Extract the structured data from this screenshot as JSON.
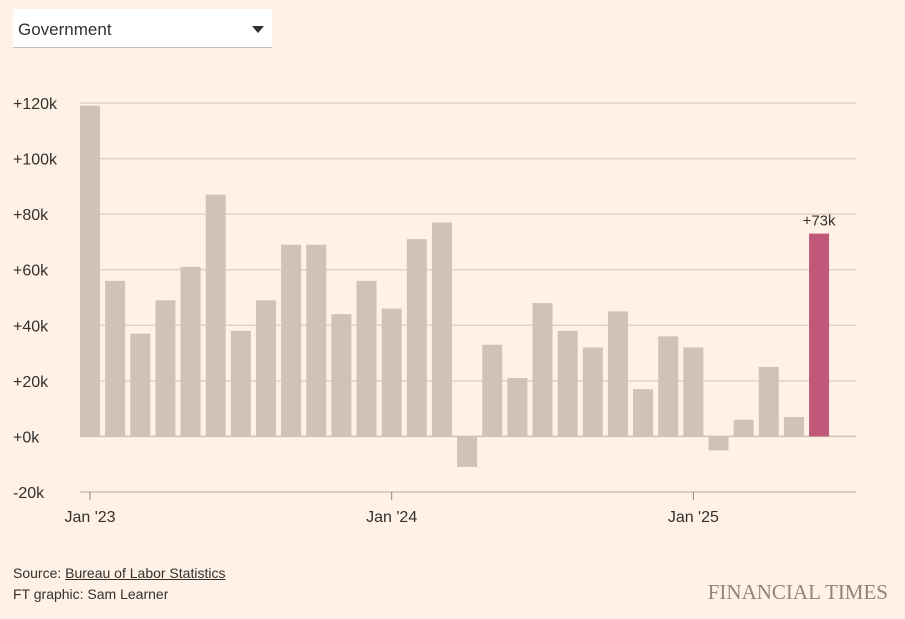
{
  "dropdown": {
    "selected": "Government"
  },
  "chart_data": {
    "type": "bar",
    "title": "",
    "xlabel": "",
    "ylabel": "",
    "ylim": [
      -20,
      120
    ],
    "yticks": [
      -20,
      0,
      20,
      40,
      60,
      80,
      100,
      120
    ],
    "ytick_labels": [
      "-20k",
      "+0k",
      "+20k",
      "+40k",
      "+60k",
      "+80k",
      "+100k",
      "+120k"
    ],
    "xtick_labels": [
      {
        "index": 0,
        "label": "Jan '23"
      },
      {
        "index": 12,
        "label": "Jan '24"
      },
      {
        "index": 24,
        "label": "Jan '25"
      }
    ],
    "categories": [
      "Jan 2023",
      "Feb 2023",
      "Mar 2023",
      "Apr 2023",
      "May 2023",
      "Jun 2023",
      "Jul 2023",
      "Aug 2023",
      "Sep 2023",
      "Oct 2023",
      "Nov 2023",
      "Dec 2023",
      "Jan 2024",
      "Feb 2024",
      "Mar 2024",
      "Apr 2024",
      "May 2024",
      "Jun 2024",
      "Jul 2024",
      "Aug 2024",
      "Sep 2024",
      "Oct 2024",
      "Nov 2024",
      "Dec 2024",
      "Jan 2025",
      "Feb 2025",
      "Mar 2025",
      "Apr 2025",
      "May 2025",
      "Jun 2025"
    ],
    "values": [
      119,
      56,
      37,
      49,
      61,
      87,
      38,
      49,
      69,
      69,
      44,
      56,
      46,
      71,
      77,
      -11,
      33,
      21,
      48,
      38,
      32,
      45,
      17,
      36,
      32,
      -5,
      6,
      25,
      7,
      73
    ],
    "units": "thousands of jobs",
    "highlight_index": 29,
    "highlight_label": "+73k",
    "colors": {
      "bar": "#cec2b9",
      "highlight": "#c0587a",
      "grid": "#e0d2c8",
      "zero": "#ccc1b7"
    },
    "grid": true
  },
  "footer": {
    "source_prefix": "Source: ",
    "source_link": "Bureau of Labor Statistics",
    "credit": "FT graphic: Sam Learner",
    "logo": "FINANCIAL TIMES"
  }
}
